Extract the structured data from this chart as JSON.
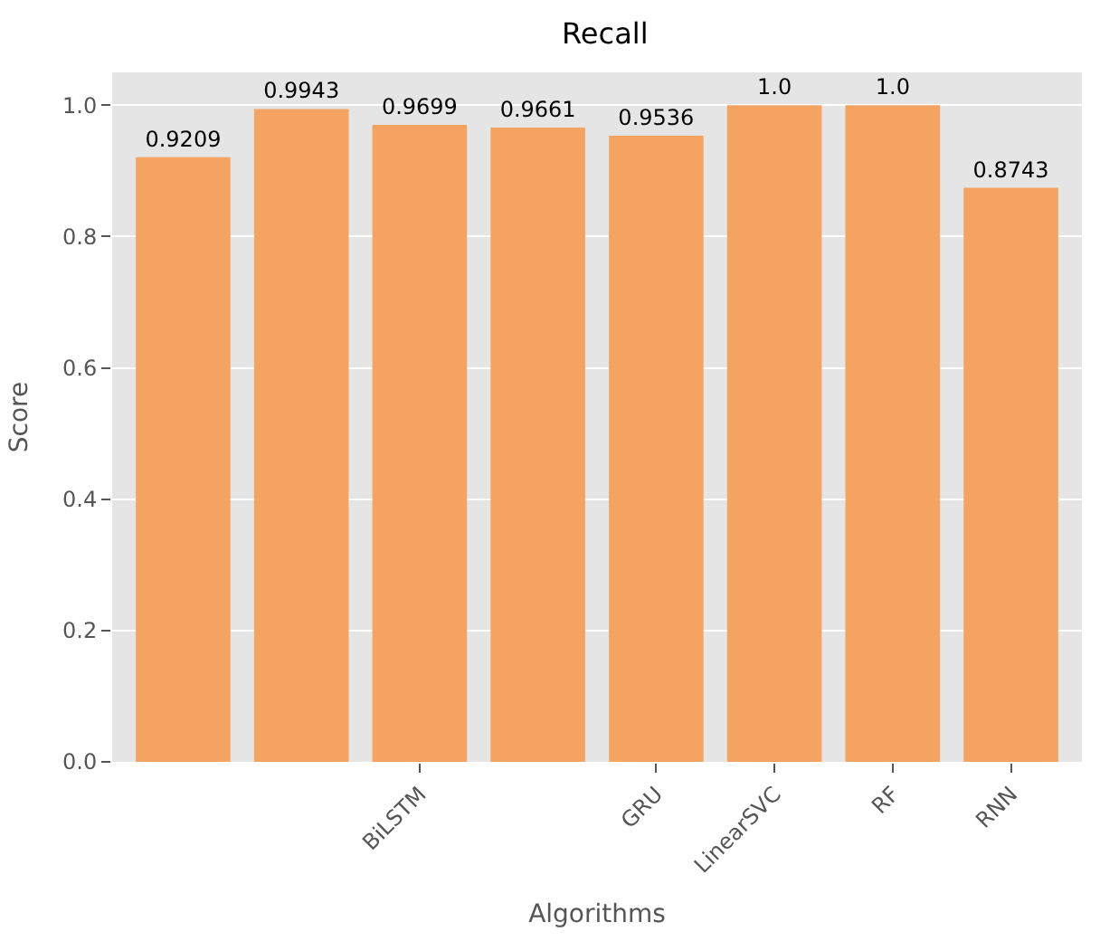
{
  "chart_data": {
    "type": "bar",
    "title": "Recall",
    "xlabel": "Algorithms",
    "ylabel": "Score",
    "categories": [
      null,
      null,
      "BiLSTM",
      null,
      "GRU",
      "LinearSVC",
      "RF",
      "RNN"
    ],
    "values": [
      0.9209,
      0.9943,
      0.9699,
      0.9661,
      0.9536,
      1.0,
      1.0,
      0.8743
    ],
    "value_labels": [
      "0.9209",
      "0.9943",
      "0.9699",
      "0.9661",
      "0.9536",
      "1.0",
      "1.0",
      "0.8743"
    ],
    "color": "#f4a460",
    "ylim": [
      0,
      1.05
    ],
    "yticks": [
      {
        "value": 0,
        "label": "0.0"
      },
      {
        "value": 0.2,
        "label": "0.2"
      },
      {
        "value": 0.4,
        "label": "0.4"
      },
      {
        "value": 0.6,
        "label": "0.6"
      },
      {
        "value": 0.8,
        "label": "0.8"
      },
      {
        "value": 1.0,
        "label": "1.0"
      }
    ],
    "grid": "y"
  }
}
